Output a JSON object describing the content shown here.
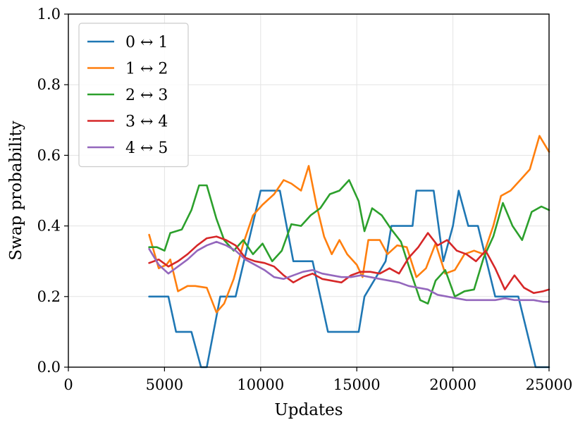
{
  "chart_data": {
    "type": "line",
    "title": "",
    "xlabel": "Updates",
    "ylabel": "Swap probability",
    "xlim": [
      0,
      25000
    ],
    "ylim": [
      0,
      1.0
    ],
    "xticks": [
      0,
      5000,
      10000,
      15000,
      20000,
      25000
    ],
    "xtick_labels": [
      "0",
      "5000",
      "10000",
      "15000",
      "20000",
      "25000"
    ],
    "yticks": [
      0.0,
      0.2,
      0.4,
      0.6,
      0.8,
      1.0
    ],
    "ytick_labels": [
      "0.0",
      "0.2",
      "0.4",
      "0.6",
      "0.8",
      "1.0"
    ],
    "grid": true,
    "legend_position": "top-left",
    "series": [
      {
        "name": "0 ↔ 1",
        "color": "#1f77b4",
        "x": [
          4200,
          5200,
          5600,
          6400,
          6900,
          7200,
          7900,
          8700,
          10000,
          11000,
          11700,
          12700,
          13500,
          14300,
          15100,
          15400,
          16500,
          16800,
          17900,
          18100,
          19000,
          19500,
          20000,
          20300,
          20800,
          21300,
          22200,
          23400,
          24300,
          25000
        ],
        "y": [
          0.2,
          0.2,
          0.1,
          0.1,
          0.0,
          0.0,
          0.2,
          0.2,
          0.5,
          0.5,
          0.3,
          0.3,
          0.1,
          0.1,
          0.1,
          0.2,
          0.3,
          0.4,
          0.4,
          0.5,
          0.5,
          0.3,
          0.4,
          0.5,
          0.4,
          0.4,
          0.2,
          0.2,
          0.0,
          0.0
        ]
      },
      {
        "name": "1 ↔ 2",
        "color": "#ff7f0e",
        "x": [
          4200,
          4700,
          5100,
          5300,
          5700,
          6200,
          6600,
          7200,
          7700,
          8100,
          8600,
          9100,
          9600,
          10100,
          10700,
          11200,
          11600,
          12100,
          12500,
          12900,
          13300,
          13700,
          14100,
          14500,
          15000,
          15300,
          15600,
          16200,
          16600,
          17100,
          17600,
          18100,
          18600,
          19100,
          19600,
          20100,
          20600,
          21100,
          21600,
          22100,
          22500,
          23000,
          23500,
          24000,
          24500,
          25000
        ],
        "y": [
          0.375,
          0.28,
          0.29,
          0.305,
          0.215,
          0.23,
          0.23,
          0.225,
          0.155,
          0.18,
          0.25,
          0.35,
          0.43,
          0.46,
          0.49,
          0.53,
          0.52,
          0.5,
          0.57,
          0.46,
          0.37,
          0.32,
          0.36,
          0.32,
          0.29,
          0.255,
          0.36,
          0.36,
          0.32,
          0.345,
          0.34,
          0.255,
          0.28,
          0.35,
          0.265,
          0.275,
          0.32,
          0.33,
          0.32,
          0.4,
          0.485,
          0.5,
          0.53,
          0.56,
          0.655,
          0.61
        ]
      },
      {
        "name": "2 ↔ 3",
        "color": "#2ca02c",
        "x": [
          4200,
          4600,
          5000,
          5300,
          5900,
          6400,
          6800,
          7200,
          7700,
          8100,
          8600,
          9100,
          9600,
          10100,
          10600,
          11100,
          11600,
          12100,
          12600,
          13100,
          13600,
          14100,
          14600,
          15100,
          15400,
          15800,
          16300,
          16800,
          17300,
          17800,
          18300,
          18700,
          19100,
          19600,
          20100,
          20600,
          21100,
          21600,
          22100,
          22600,
          23100,
          23600,
          24100,
          24600,
          25000
        ],
        "y": [
          0.34,
          0.34,
          0.33,
          0.38,
          0.39,
          0.445,
          0.515,
          0.515,
          0.42,
          0.36,
          0.33,
          0.36,
          0.32,
          0.35,
          0.3,
          0.33,
          0.405,
          0.4,
          0.43,
          0.45,
          0.49,
          0.5,
          0.53,
          0.47,
          0.385,
          0.45,
          0.43,
          0.39,
          0.355,
          0.27,
          0.19,
          0.18,
          0.245,
          0.275,
          0.2,
          0.215,
          0.22,
          0.31,
          0.37,
          0.465,
          0.4,
          0.36,
          0.44,
          0.455,
          0.445
        ]
      },
      {
        "name": "3 ↔ 4",
        "color": "#d62728",
        "x": [
          4200,
          4700,
          5200,
          5700,
          6200,
          6700,
          7200,
          7700,
          8200,
          8700,
          9200,
          9700,
          10200,
          10700,
          11200,
          11700,
          12200,
          12700,
          13200,
          13700,
          14200,
          14700,
          15200,
          15700,
          16200,
          16700,
          17200,
          17700,
          18200,
          18700,
          19200,
          19700,
          20200,
          20700,
          21200,
          21700,
          22200,
          22700,
          23200,
          23700,
          24200,
          24700,
          25000
        ],
        "y": [
          0.295,
          0.305,
          0.285,
          0.3,
          0.32,
          0.345,
          0.365,
          0.37,
          0.36,
          0.345,
          0.31,
          0.3,
          0.295,
          0.285,
          0.26,
          0.24,
          0.255,
          0.265,
          0.25,
          0.245,
          0.24,
          0.26,
          0.27,
          0.27,
          0.265,
          0.28,
          0.265,
          0.31,
          0.34,
          0.38,
          0.345,
          0.36,
          0.33,
          0.32,
          0.3,
          0.33,
          0.28,
          0.22,
          0.26,
          0.225,
          0.21,
          0.215,
          0.22
        ]
      },
      {
        "name": "4 ↔ 5",
        "color": "#9467bd",
        "x": [
          4200,
          4700,
          5200,
          5700,
          6200,
          6700,
          7200,
          7700,
          8200,
          8700,
          9200,
          9700,
          10200,
          10700,
          11200,
          11700,
          12200,
          12700,
          13200,
          13700,
          14200,
          14700,
          15200,
          15700,
          16200,
          16700,
          17200,
          17700,
          18200,
          18700,
          19200,
          19700,
          20200,
          20700,
          21200,
          21700,
          22200,
          22700,
          23200,
          23700,
          24200,
          24700,
          25000
        ],
        "y": [
          0.335,
          0.29,
          0.265,
          0.285,
          0.305,
          0.33,
          0.345,
          0.355,
          0.345,
          0.33,
          0.305,
          0.29,
          0.275,
          0.255,
          0.25,
          0.26,
          0.27,
          0.275,
          0.265,
          0.26,
          0.255,
          0.255,
          0.26,
          0.255,
          0.25,
          0.245,
          0.24,
          0.23,
          0.225,
          0.22,
          0.205,
          0.2,
          0.195,
          0.19,
          0.19,
          0.19,
          0.19,
          0.195,
          0.19,
          0.19,
          0.19,
          0.185,
          0.185
        ]
      }
    ]
  }
}
